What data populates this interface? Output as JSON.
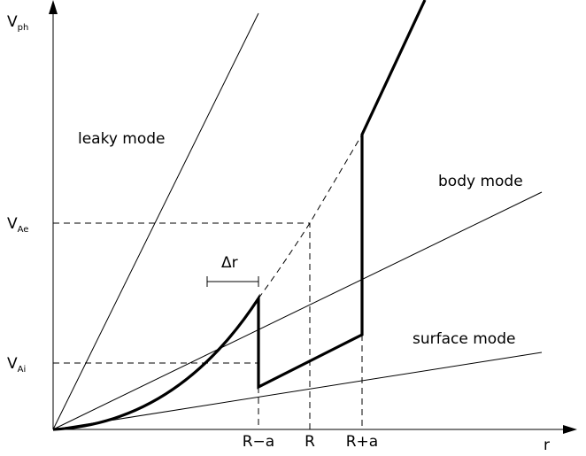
{
  "y_axis": {
    "main": "V",
    "sub": "ph"
  },
  "x_axis": "r",
  "levels": [
    {
      "main": "V",
      "sub": "Ae"
    },
    {
      "main": "V",
      "sub": "Ai"
    }
  ],
  "modes": [
    "leaky mode",
    "body mode",
    "surface mode"
  ],
  "width_label": "Δr",
  "radius_labels": [
    "R−a",
    "R",
    "R+a"
  ]
}
